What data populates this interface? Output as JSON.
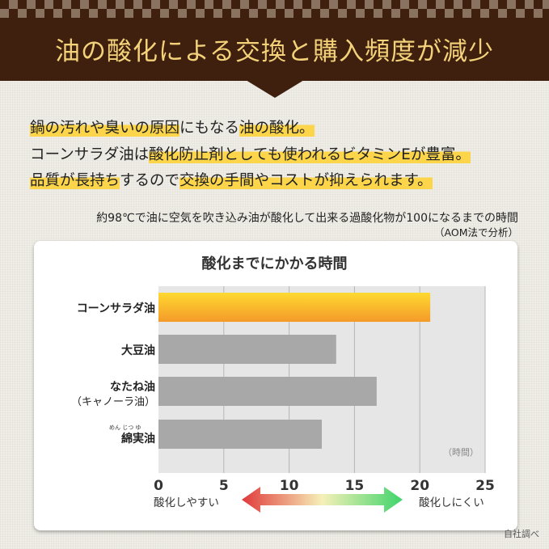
{
  "header": {
    "title": "油の酸化による交換と購入頻度が減少"
  },
  "intro": {
    "line1": [
      {
        "t": "鍋の汚れや臭いの原因",
        "h": true
      },
      {
        "t": "にもなる",
        "h": false
      },
      {
        "t": "油の酸化。",
        "h": true
      }
    ],
    "line2": [
      {
        "t": "コーンサラダ油は",
        "h": false
      },
      {
        "t": "酸化防止剤としても使われるビタミンEが豊富。",
        "h": true
      }
    ],
    "line3": [
      {
        "t": "品質が長持ち",
        "h": true
      },
      {
        "t": "するので",
        "h": false
      },
      {
        "t": "交換の手間やコストが抑えられます。",
        "h": true
      }
    ]
  },
  "note": {
    "text": "約98℃で油に空気を吹き込み油が酸化して出来る過酸化物が100になるまでの時間",
    "method": "（AOM法で分析）"
  },
  "chart_data": {
    "type": "bar",
    "orientation": "horizontal",
    "title": "酸化までにかかる時間",
    "categories": [
      "コーンサラダ油",
      "大豆油",
      "なたね油",
      "綿実油"
    ],
    "category_sublabels": [
      "",
      "",
      "（キャノーラ油）",
      ""
    ],
    "ruby": {
      "綿実油": "めん じつ ゆ"
    },
    "values": [
      20.8,
      13.6,
      16.7,
      12.5
    ],
    "unit_label": "（時間）",
    "xlim": [
      0,
      25
    ],
    "xticks": [
      "0",
      "5",
      "10",
      "15",
      "20",
      "25"
    ],
    "grid": true,
    "colors": {
      "highlight": "#f9b42a",
      "default": "#a8a8a8",
      "plot_bg": "#e6e6e6"
    }
  },
  "scale": {
    "left": "酸化しやすい",
    "right": "酸化しにくい",
    "colors": [
      "#e0393b",
      "#f6f0b8",
      "#3fd46a"
    ]
  },
  "source": "自社調べ"
}
